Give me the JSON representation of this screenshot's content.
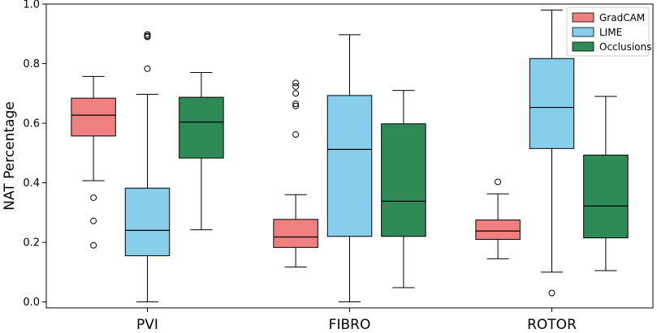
{
  "chart_data": {
    "type": "box",
    "title": "",
    "xlabel": "",
    "ylabel": "NAT Percentage",
    "ylim": [
      -0.02,
      1.0
    ],
    "yticks": [
      0.0,
      0.2,
      0.4,
      0.6,
      0.8,
      1.0
    ],
    "ytick_labels": [
      "0.0",
      "0.2",
      "0.4",
      "0.6",
      "0.8",
      "1.0"
    ],
    "categories": [
      "PVI",
      "FIBRO",
      "ROTOR"
    ],
    "grid": false,
    "legend_position": "top-right",
    "series": [
      {
        "name": "GradCAM",
        "color": "#f08080",
        "boxes": [
          {
            "whisker_low": 0.407,
            "q1": 0.557,
            "median": 0.627,
            "q3": 0.684,
            "whisker_high": 0.757,
            "outliers": [
              0.35,
              0.272,
              0.19
            ]
          },
          {
            "whisker_low": 0.117,
            "q1": 0.183,
            "median": 0.218,
            "q3": 0.277,
            "whisker_high": 0.36,
            "outliers": [
              0.735,
              0.723,
              0.7,
              0.665,
              0.658,
              0.562
            ]
          },
          {
            "whisker_low": 0.145,
            "q1": 0.21,
            "median": 0.238,
            "q3": 0.275,
            "whisker_high": 0.363,
            "outliers": [
              0.403
            ]
          }
        ]
      },
      {
        "name": "LIME",
        "color": "#87ceeb",
        "boxes": [
          {
            "whisker_low": 0.0,
            "q1": 0.155,
            "median": 0.24,
            "q3": 0.382,
            "whisker_high": 0.697,
            "outliers": [
              0.898,
              0.893,
              0.89,
              0.783
            ]
          },
          {
            "whisker_low": 0.0,
            "q1": 0.22,
            "median": 0.512,
            "q3": 0.693,
            "whisker_high": 0.897,
            "outliers": []
          },
          {
            "whisker_low": 0.1,
            "q1": 0.515,
            "median": 0.653,
            "q3": 0.817,
            "whisker_high": 0.98,
            "outliers": [
              0.03
            ]
          }
        ]
      },
      {
        "name": "Occlusions",
        "color": "#2e8b57",
        "boxes": [
          {
            "whisker_low": 0.242,
            "q1": 0.483,
            "median": 0.604,
            "q3": 0.687,
            "whisker_high": 0.77,
            "outliers": []
          },
          {
            "whisker_low": 0.048,
            "q1": 0.22,
            "median": 0.338,
            "q3": 0.598,
            "whisker_high": 0.71,
            "outliers": []
          },
          {
            "whisker_low": 0.105,
            "q1": 0.215,
            "median": 0.322,
            "q3": 0.493,
            "whisker_high": 0.69,
            "outliers": []
          }
        ]
      }
    ]
  }
}
